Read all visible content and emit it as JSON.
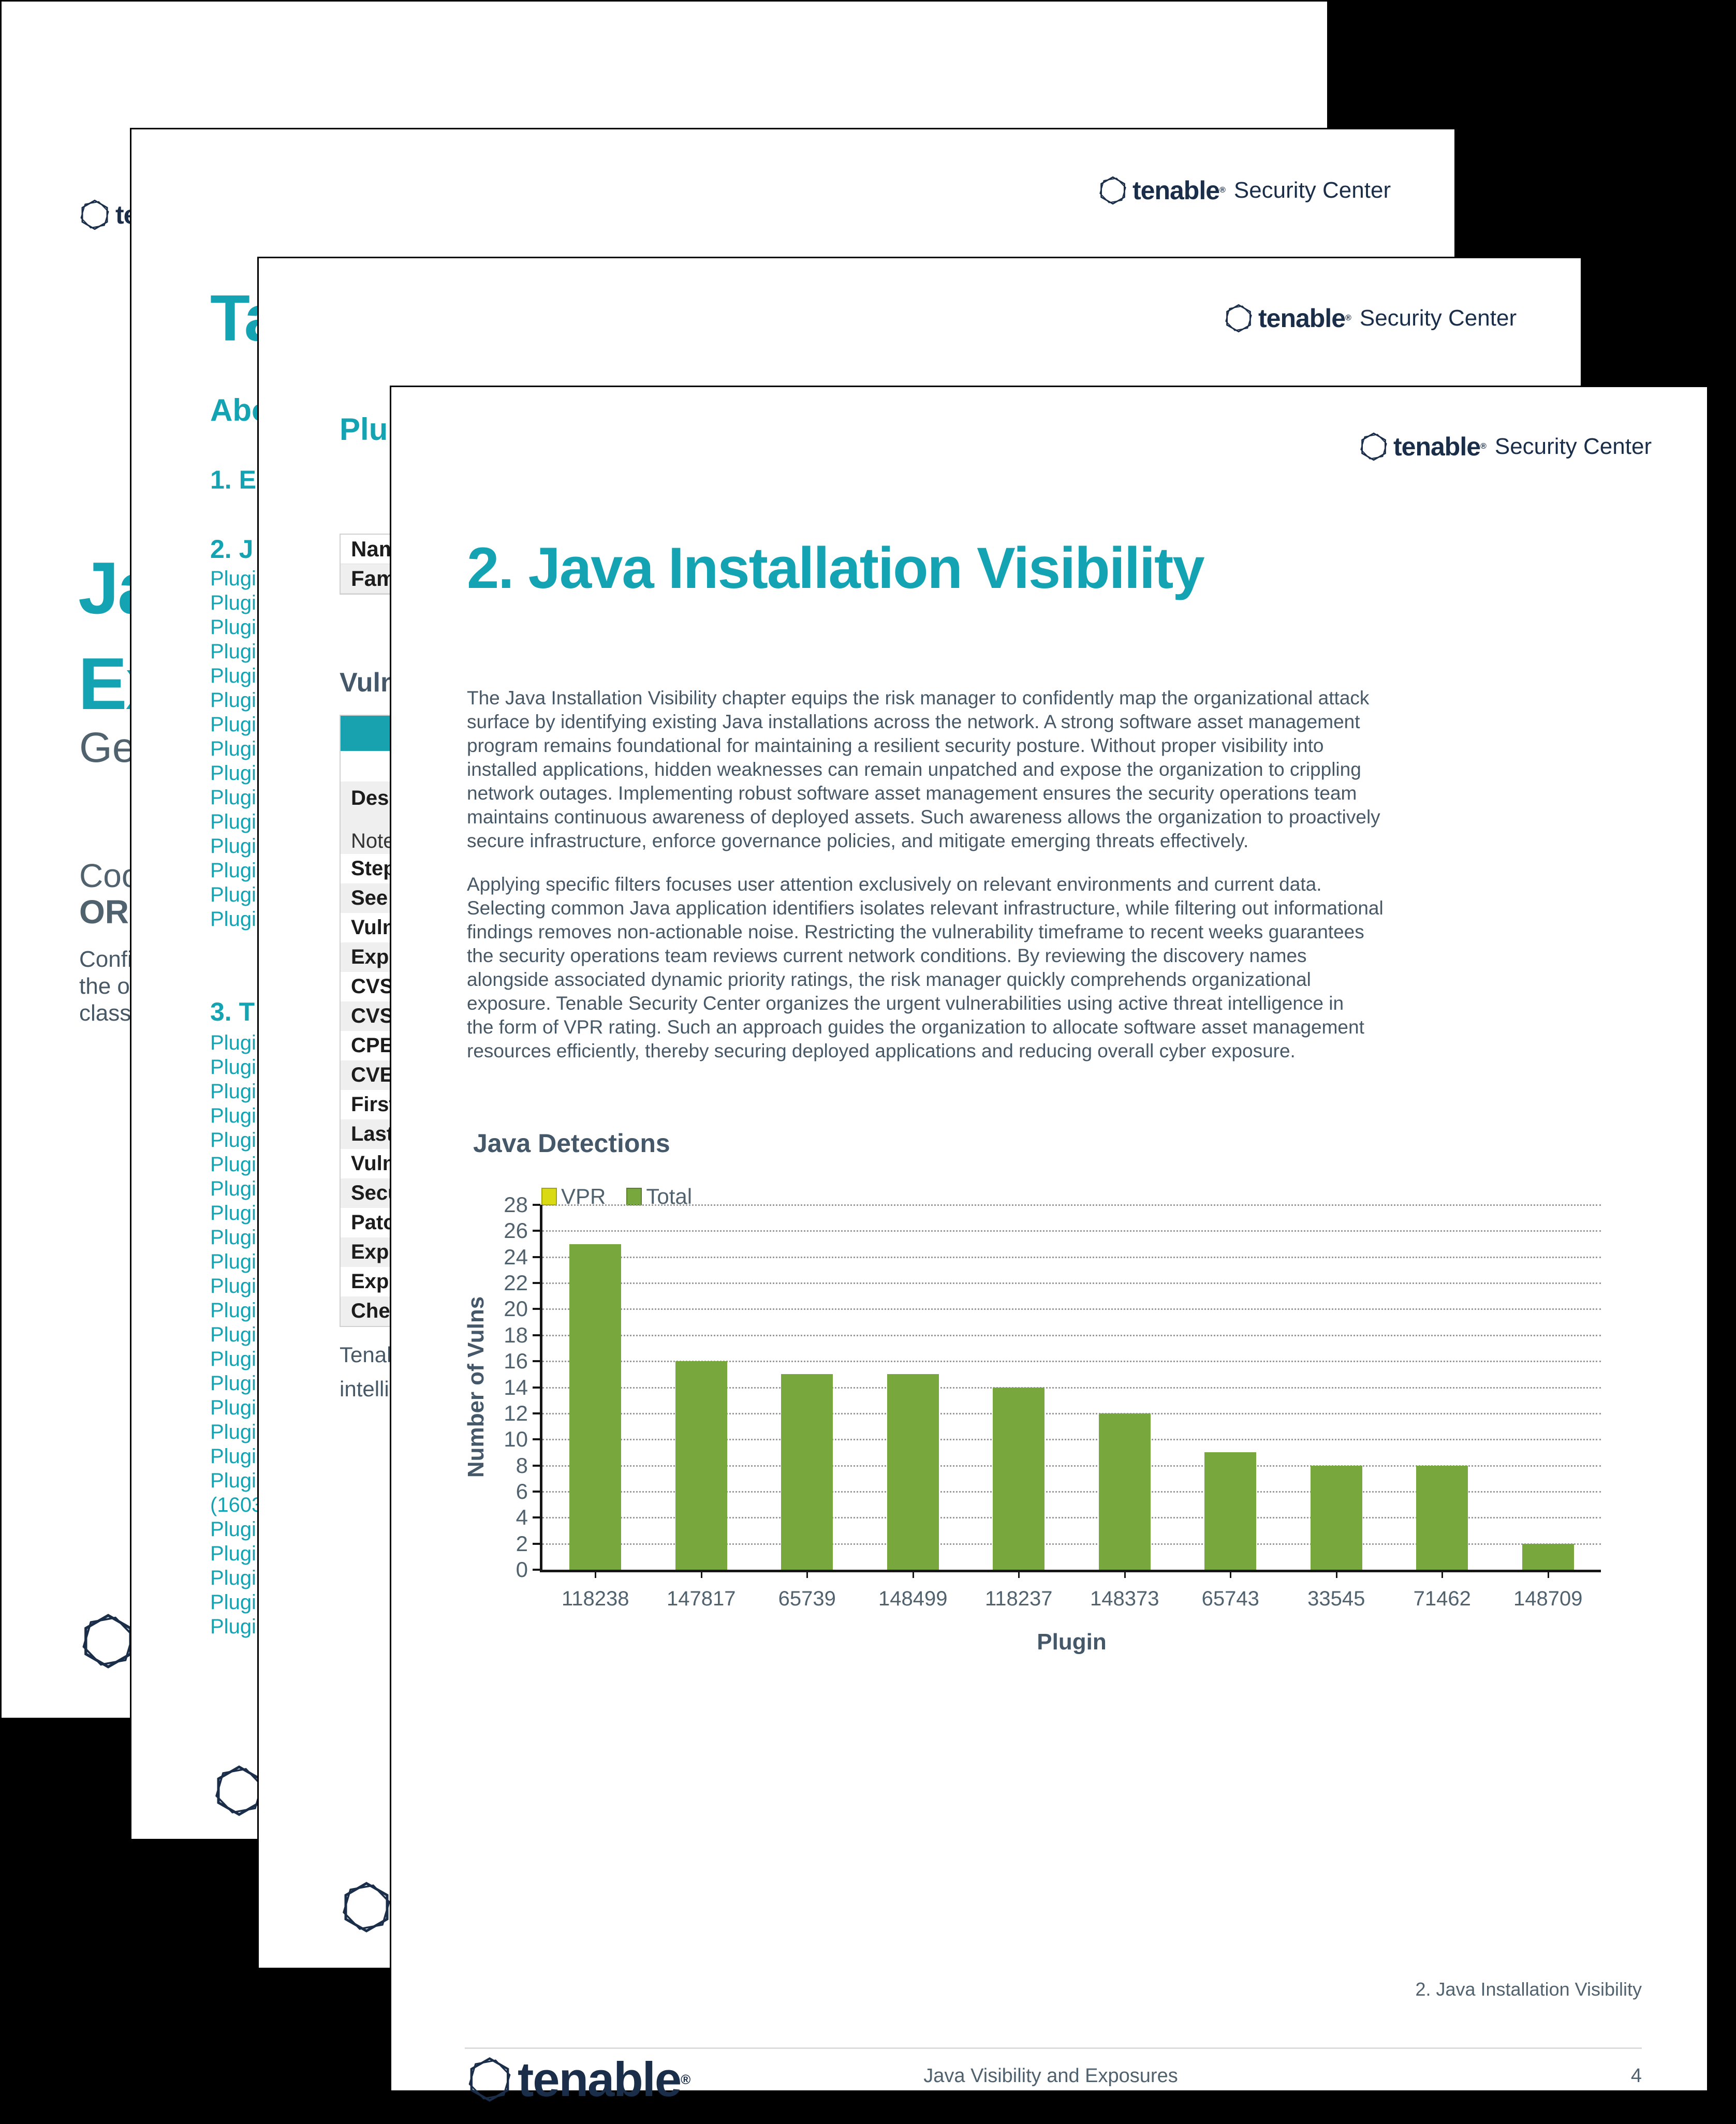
{
  "brand": {
    "name": "tenable",
    "reg": "®",
    "product": "Security Center"
  },
  "colors": {
    "teal": "#14a3b2",
    "navy": "#1a2e4a",
    "slate_heading": "#44586a",
    "body_text": "#475866",
    "bar_green": "#78a73e",
    "vpr_yellow": "#d9da12",
    "gridline": "#9a9a9a",
    "table_header_teal": "#18a2b0",
    "row_alt": "#efefef"
  },
  "page1": {
    "fragments": {
      "title_line1": "Ja",
      "title_line2": "Ex",
      "subtitle": "Ge",
      "line_coo": "Coo",
      "line_or": "OR",
      "body": [
        "Confi",
        "the o",
        "class"
      ]
    }
  },
  "page2": {
    "toc": {
      "title": "Ta",
      "about": "Abo",
      "sec1": "1. E",
      "sec2": "2. J",
      "sec2_items": [
        "Plugin",
        "Plugin",
        "Plugin",
        "Plugin",
        "Plugin",
        "Plugin",
        "Plugin",
        "Plugin",
        "Plugin",
        "Plugin",
        "Plugin",
        "Plugin",
        "Plugin",
        "Plugin",
        "Plugin"
      ],
      "sec3": "3. T",
      "sec3_items": [
        "Plugin",
        "Plugin",
        "Plugin",
        "Plugin",
        "Plugin",
        "Plugin",
        "Plugin",
        "Plugin",
        "Plugin",
        "Plugin",
        "Plugin",
        "Plugin",
        "Plugin",
        "Plugin",
        "Plugin",
        "Plugin",
        "Plugin",
        "Plugin",
        "Plugin",
        "(1603",
        "Plugin",
        "Plugin",
        "Plugin",
        "Plugin",
        "Plugin"
      ]
    }
  },
  "page3": {
    "heading": "Plu",
    "info_rows": [
      "Name",
      "Famil"
    ],
    "section_heading": "Vulne",
    "detail_rows": [
      "Descr",
      "Note t",
      "Steps",
      "See A",
      "Vulne",
      "Explo",
      "CVSS",
      "CVSS",
      "CPE:",
      "CVE:",
      "First",
      "Last (",
      "Vuln",
      "Secur",
      "Patch",
      "Explo",
      "Explo",
      "Chec"
    ],
    "paragraph": [
      "Tenab",
      "intellig"
    ]
  },
  "page4": {
    "heading": "2. Java Installation Visibility",
    "para1": [
      "The Java Installation Visibility chapter equips the risk manager to confidently map the organizational attack",
      "surface by identifying existing Java installations across the network. A strong software asset management",
      "program remains foundational for maintaining a resilient security posture. Without proper visibility into",
      "installed applications, hidden weaknesses can remain unpatched and expose the organization to crippling",
      "network outages. Implementing robust software asset management ensures the security operations team",
      "maintains continuous awareness of deployed assets. Such awareness allows the organization to proactively",
      "secure infrastructure, enforce governance policies, and mitigate emerging threats effectively."
    ],
    "para2": [
      "Applying specific filters focuses user attention exclusively on relevant environments and current data.",
      "Selecting common Java application identifiers isolates relevant infrastructure, while filtering out informational",
      "findings removes non-actionable noise. Restricting the vulnerability timeframe to recent weeks guarantees",
      "the security operations team reviews current network conditions. By reviewing the discovery names",
      "alongside associated dynamic priority ratings, the risk manager quickly comprehends organizational",
      "exposure. Tenable Security Center organizes the urgent vulnerabilities using active threat intelligence in",
      "the form of VPR rating. Such an approach guides the organization to allocate software asset management",
      "resources efficiently, thereby securing deployed applications and reducing overall cyber exposure."
    ],
    "footer": {
      "chapter": "2. Java Installation Visibility",
      "doc_title": "Java Visibility and Exposures",
      "page_number": "4"
    }
  },
  "chart_data": {
    "type": "bar",
    "title": "Java Detections",
    "categories": [
      "118238",
      "147817",
      "65739",
      "148499",
      "118237",
      "148373",
      "65743",
      "33545",
      "71462",
      "148709"
    ],
    "series": [
      {
        "name": "VPR",
        "color": "#d9da12",
        "values": [
          0,
          0,
          0,
          0,
          0,
          0,
          0,
          0,
          0,
          0
        ]
      },
      {
        "name": "Total",
        "color": "#78a73e",
        "values": [
          25,
          16,
          15,
          15,
          14,
          12,
          9,
          8,
          8,
          2
        ]
      }
    ],
    "xlabel": "Plugin",
    "ylabel": "Number of Vulns",
    "ylim": [
      0,
      28
    ],
    "ytick_step": 2,
    "grid": true,
    "legend_position": "top-left"
  }
}
